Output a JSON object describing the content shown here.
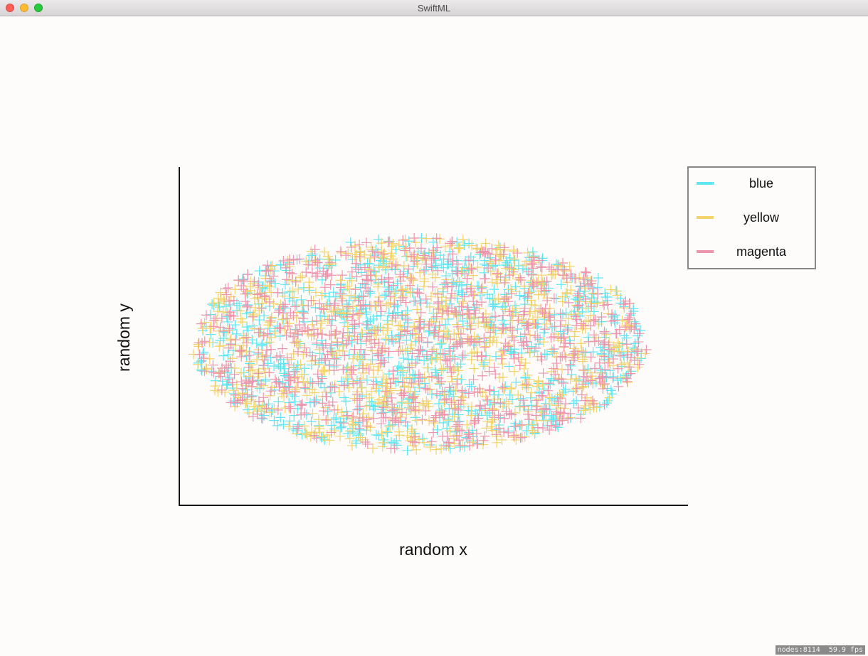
{
  "window": {
    "title": "SwiftML"
  },
  "status": {
    "text": "nodes:8114  59.9 fps"
  },
  "chart_data": {
    "type": "scatter",
    "marker": "plus",
    "xlabel": "random x",
    "ylabel": "random y",
    "xlim": [
      -1.3,
      1.2
    ],
    "ylim": [
      -1.3,
      1.3
    ],
    "point_region": "ellipse",
    "legend_position": "top-right",
    "points_per_series": 900,
    "series": [
      {
        "name": "blue",
        "color": "#5ee6f2"
      },
      {
        "name": "yellow",
        "color": "#f3d36b"
      },
      {
        "name": "magenta",
        "color": "#ec95ad"
      }
    ]
  }
}
